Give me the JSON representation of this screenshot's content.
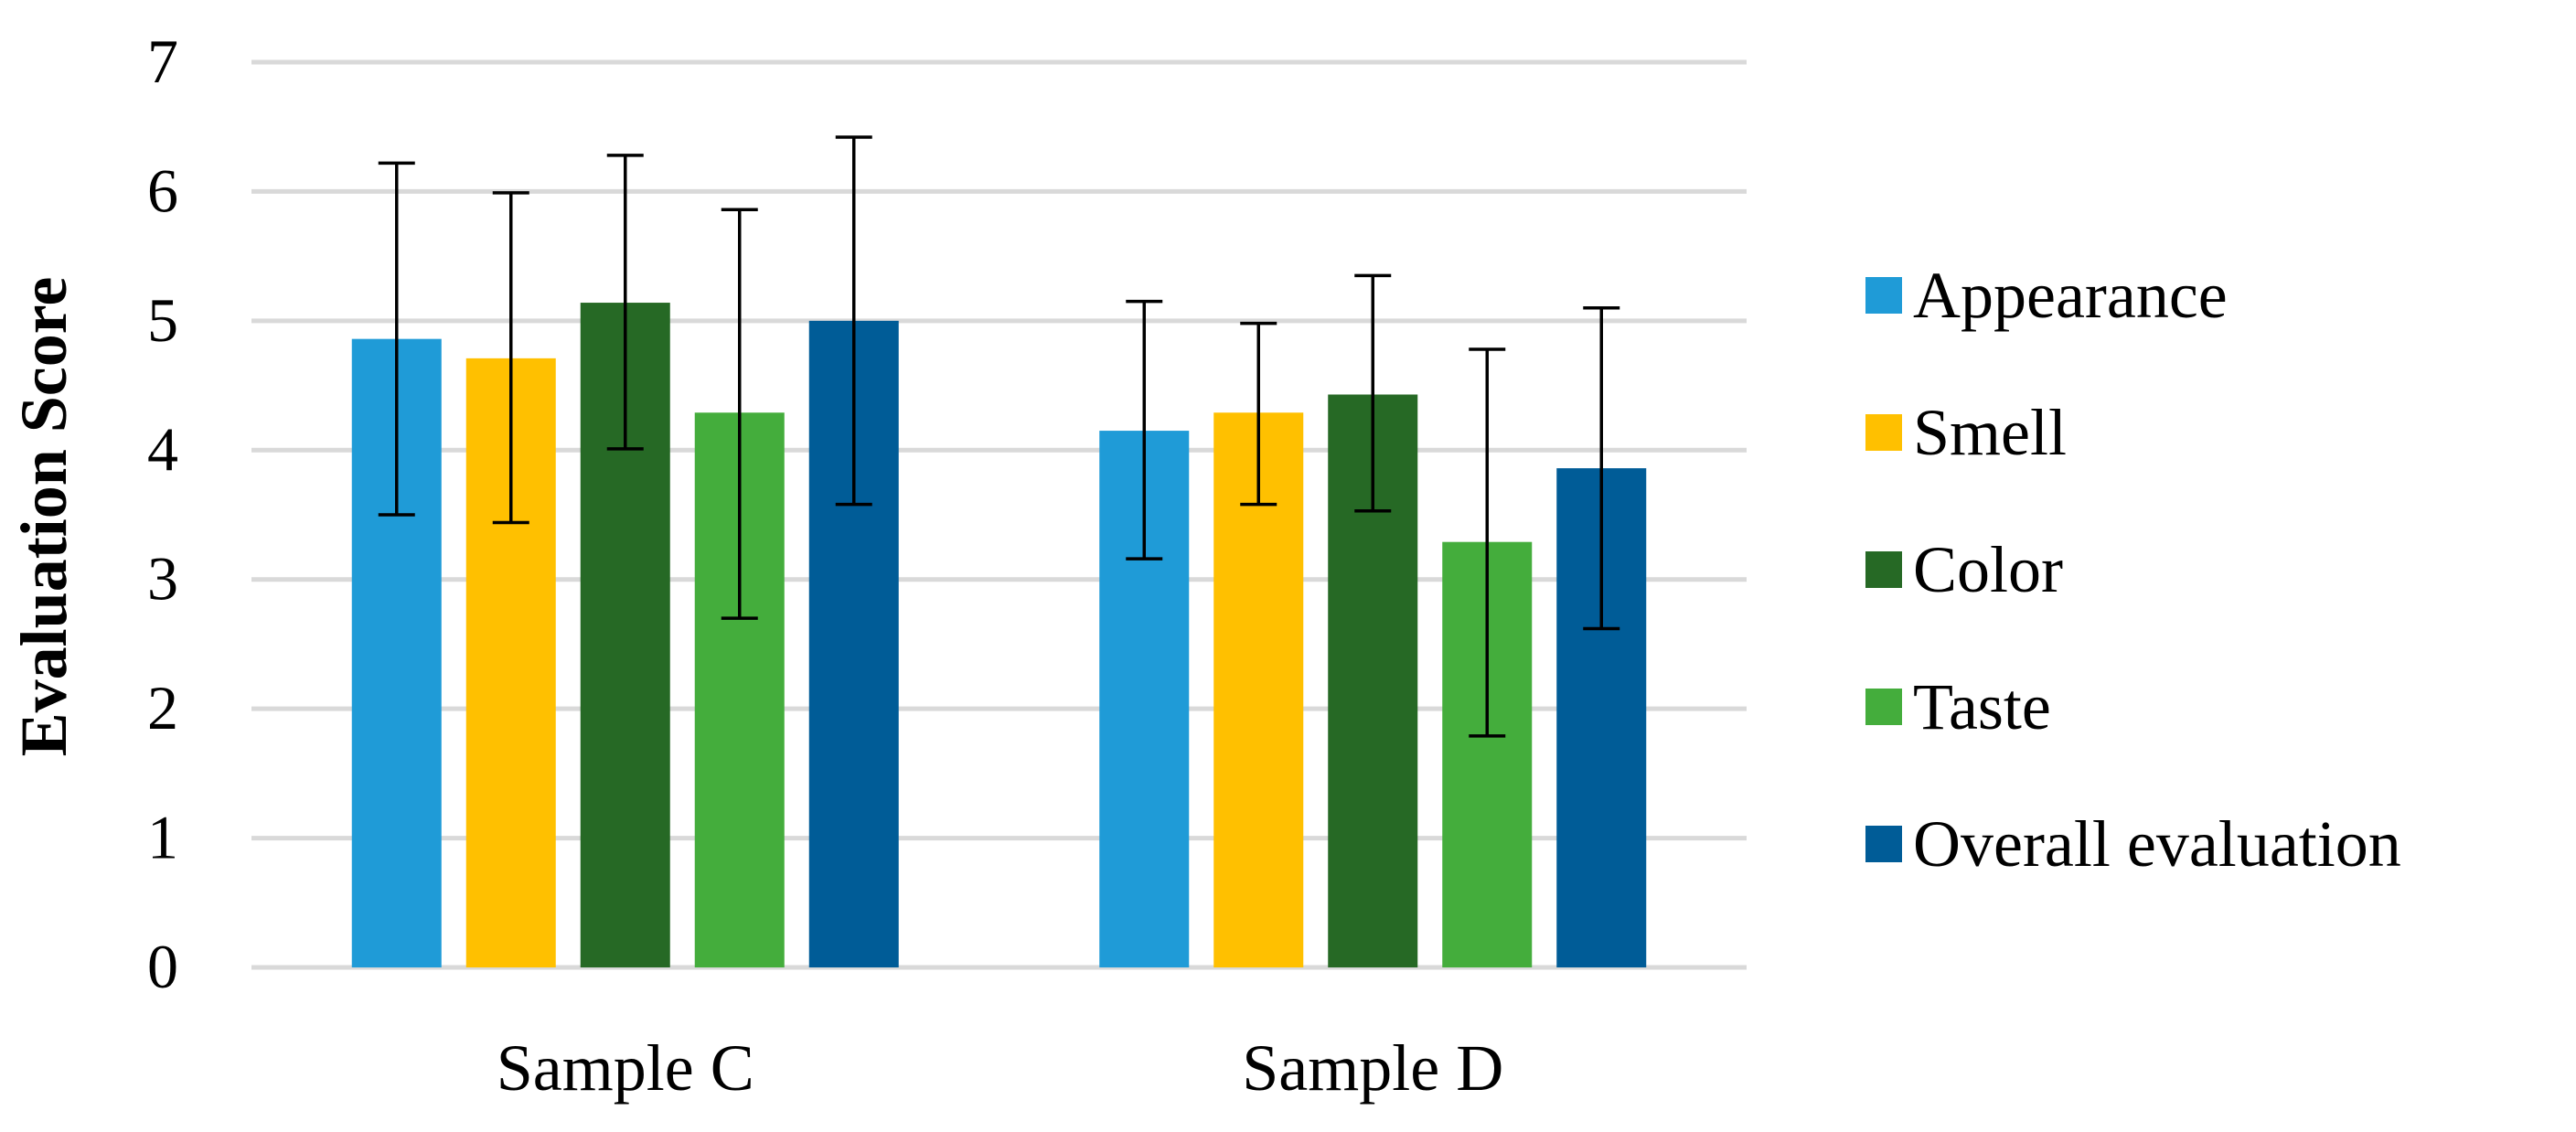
{
  "chart_data": {
    "type": "bar",
    "title": "",
    "xlabel": "",
    "ylabel": "Evaluation Score",
    "ylim": [
      0,
      7
    ],
    "yticks": [
      0,
      1,
      2,
      3,
      4,
      5,
      6,
      7
    ],
    "categories": [
      "Sample C",
      "Sample D"
    ],
    "series": [
      {
        "name": "Appearance",
        "color": "#1f9bd7",
        "values": [
          4.86,
          4.15
        ],
        "error_low": [
          3.5,
          3.16
        ],
        "error_high": [
          6.22,
          5.15
        ]
      },
      {
        "name": "Smell",
        "color": "#ffc000",
        "values": [
          4.71,
          4.29
        ],
        "error_low": [
          3.44,
          3.58
        ],
        "error_high": [
          5.99,
          4.98
        ]
      },
      {
        "name": "Color",
        "color": "#266925",
        "values": [
          5.14,
          4.43
        ],
        "error_low": [
          4.01,
          3.53
        ],
        "error_high": [
          6.28,
          5.35
        ]
      },
      {
        "name": "Taste",
        "color": "#44ad3c",
        "values": [
          4.29,
          3.29
        ],
        "error_low": [
          2.7,
          1.79
        ],
        "error_high": [
          5.86,
          4.78
        ]
      },
      {
        "name": "Overall evaluation",
        "color": "#005c97",
        "values": [
          5.0,
          3.86
        ],
        "error_low": [
          3.58,
          2.62
        ],
        "error_high": [
          6.42,
          5.1
        ]
      }
    ],
    "grid": true,
    "legend": "right"
  }
}
